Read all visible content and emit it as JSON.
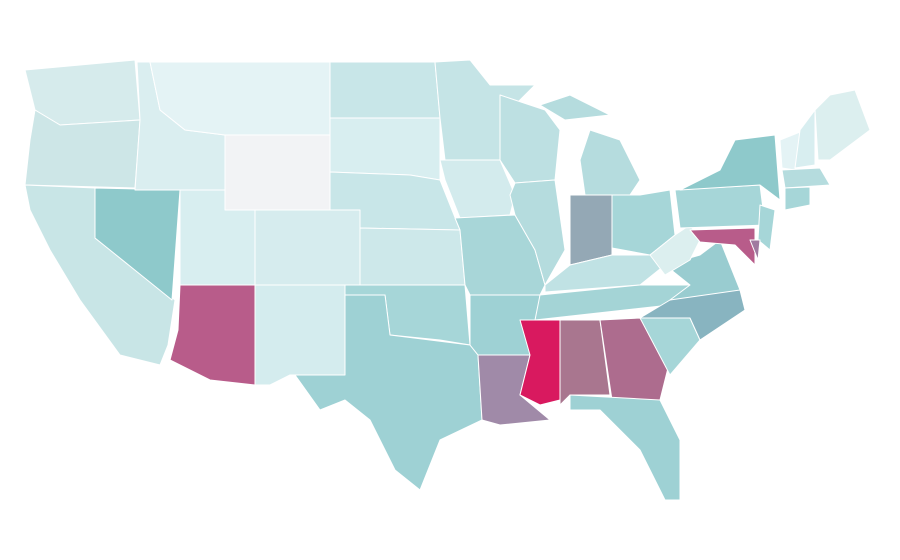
{
  "map": {
    "regions": [
      {
        "color": "#d6ebec"
      },
      {
        "color": "#cde6e7"
      },
      {
        "color": "#c8e5e6"
      },
      {
        "color": "#8ec9cb"
      },
      {
        "color": "#daeef0"
      },
      {
        "color": "#e4f3f5"
      },
      {
        "color": "#f2f3f5"
      },
      {
        "color": "#d8eef0"
      },
      {
        "color": "#b85c8a"
      },
      {
        "color": "#d6ecee"
      },
      {
        "color": "#d4ecee"
      },
      {
        "color": "#c8e6e8"
      },
      {
        "color": "#d8eef0"
      },
      {
        "color": "#c8e6e8"
      },
      {
        "color": "#cde8ea"
      },
      {
        "color": "#a6d6d8"
      },
      {
        "color": "#9ed1d4"
      },
      {
        "color": "#c5e4e6"
      },
      {
        "color": "#d3ebed"
      },
      {
        "color": "#a8d6d8"
      },
      {
        "color": "#9ed1d4"
      },
      {
        "color": "#a08aa8"
      },
      {
        "color": "#bde0e2"
      },
      {
        "color": "#b5dcde"
      },
      {
        "color": "#b5dcde"
      },
      {
        "color": "#b5dcde"
      },
      {
        "color": "#94a8b5"
      },
      {
        "color": "#a6d6d8"
      },
      {
        "color": "#c0e2e4"
      },
      {
        "color": "#a4d4d6"
      },
      {
        "color": "#d9195f"
      },
      {
        "color": "#a9768f"
      },
      {
        "color": "#ad6c8e"
      },
      {
        "color": "#9ed1d4"
      },
      {
        "color": "#a6d6d8"
      },
      {
        "color": "#88b4c0"
      },
      {
        "color": "#99ccd0"
      },
      {
        "color": "#dcefef"
      },
      {
        "color": "#a6d6d8"
      },
      {
        "color": "#8ec9cb"
      },
      {
        "color": "#b85c8a"
      },
      {
        "color": "#a6d6d8"
      },
      {
        "color": "#a07aa0"
      },
      {
        "color": "#e4f3f5"
      },
      {
        "color": "#d8eef0"
      },
      {
        "color": "#dcefef"
      },
      {
        "color": "#b5dcde"
      },
      {
        "color": "#a6d6d8"
      }
    ]
  }
}
